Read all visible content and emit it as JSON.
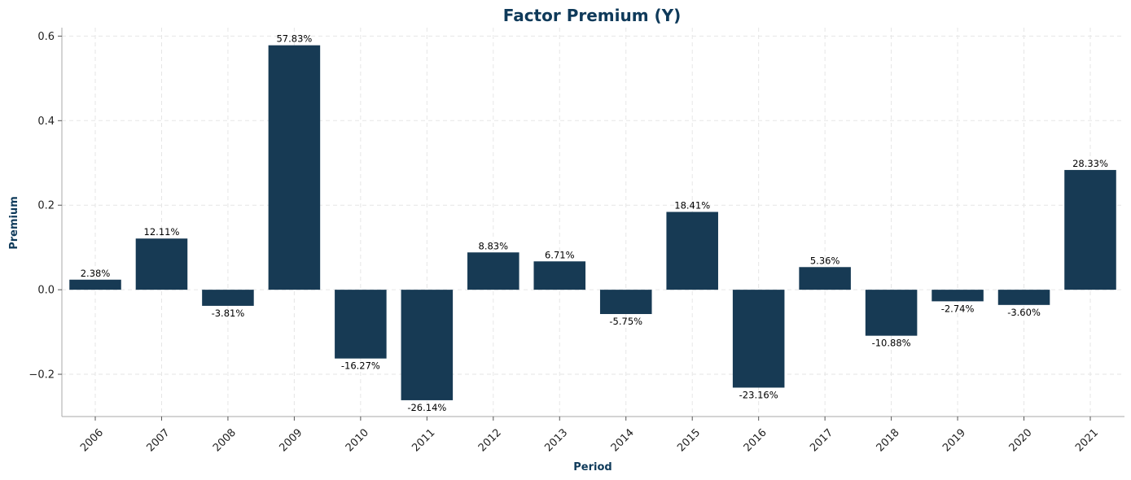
{
  "chart_data": {
    "type": "bar",
    "title": "Factor Premium (Y)",
    "xlabel": "Period",
    "ylabel": "Premium",
    "categories": [
      "2006",
      "2007",
      "2008",
      "2009",
      "2010",
      "2011",
      "2012",
      "2013",
      "2014",
      "2015",
      "2016",
      "2017",
      "2018",
      "2019",
      "2020",
      "2021"
    ],
    "values": [
      0.0238,
      0.1211,
      -0.0381,
      0.5783,
      -0.1627,
      -0.2614,
      0.0883,
      0.0671,
      -0.0575,
      0.1841,
      -0.2316,
      0.0536,
      -0.1088,
      -0.0274,
      -0.036,
      0.2833
    ],
    "data_labels": [
      "2.38%",
      "12.11%",
      "-3.81%",
      "57.83%",
      "-16.27%",
      "-26.14%",
      "8.83%",
      "6.71%",
      "-5.75%",
      "18.41%",
      "-23.16%",
      "5.36%",
      "-10.88%",
      "-2.74%",
      "-3.60%",
      "28.33%"
    ],
    "ylim": [
      -0.3,
      0.62
    ],
    "yticks": [
      -0.2,
      0.0,
      0.2,
      0.4,
      0.6
    ],
    "ytick_labels": [
      "−0.2",
      "0.0",
      "0.2",
      "0.4",
      "0.6"
    ],
    "grid": true,
    "bar_color": "#173a54",
    "title_color": "#0f3a5a",
    "axis_label_color": "#0f3a5a"
  }
}
